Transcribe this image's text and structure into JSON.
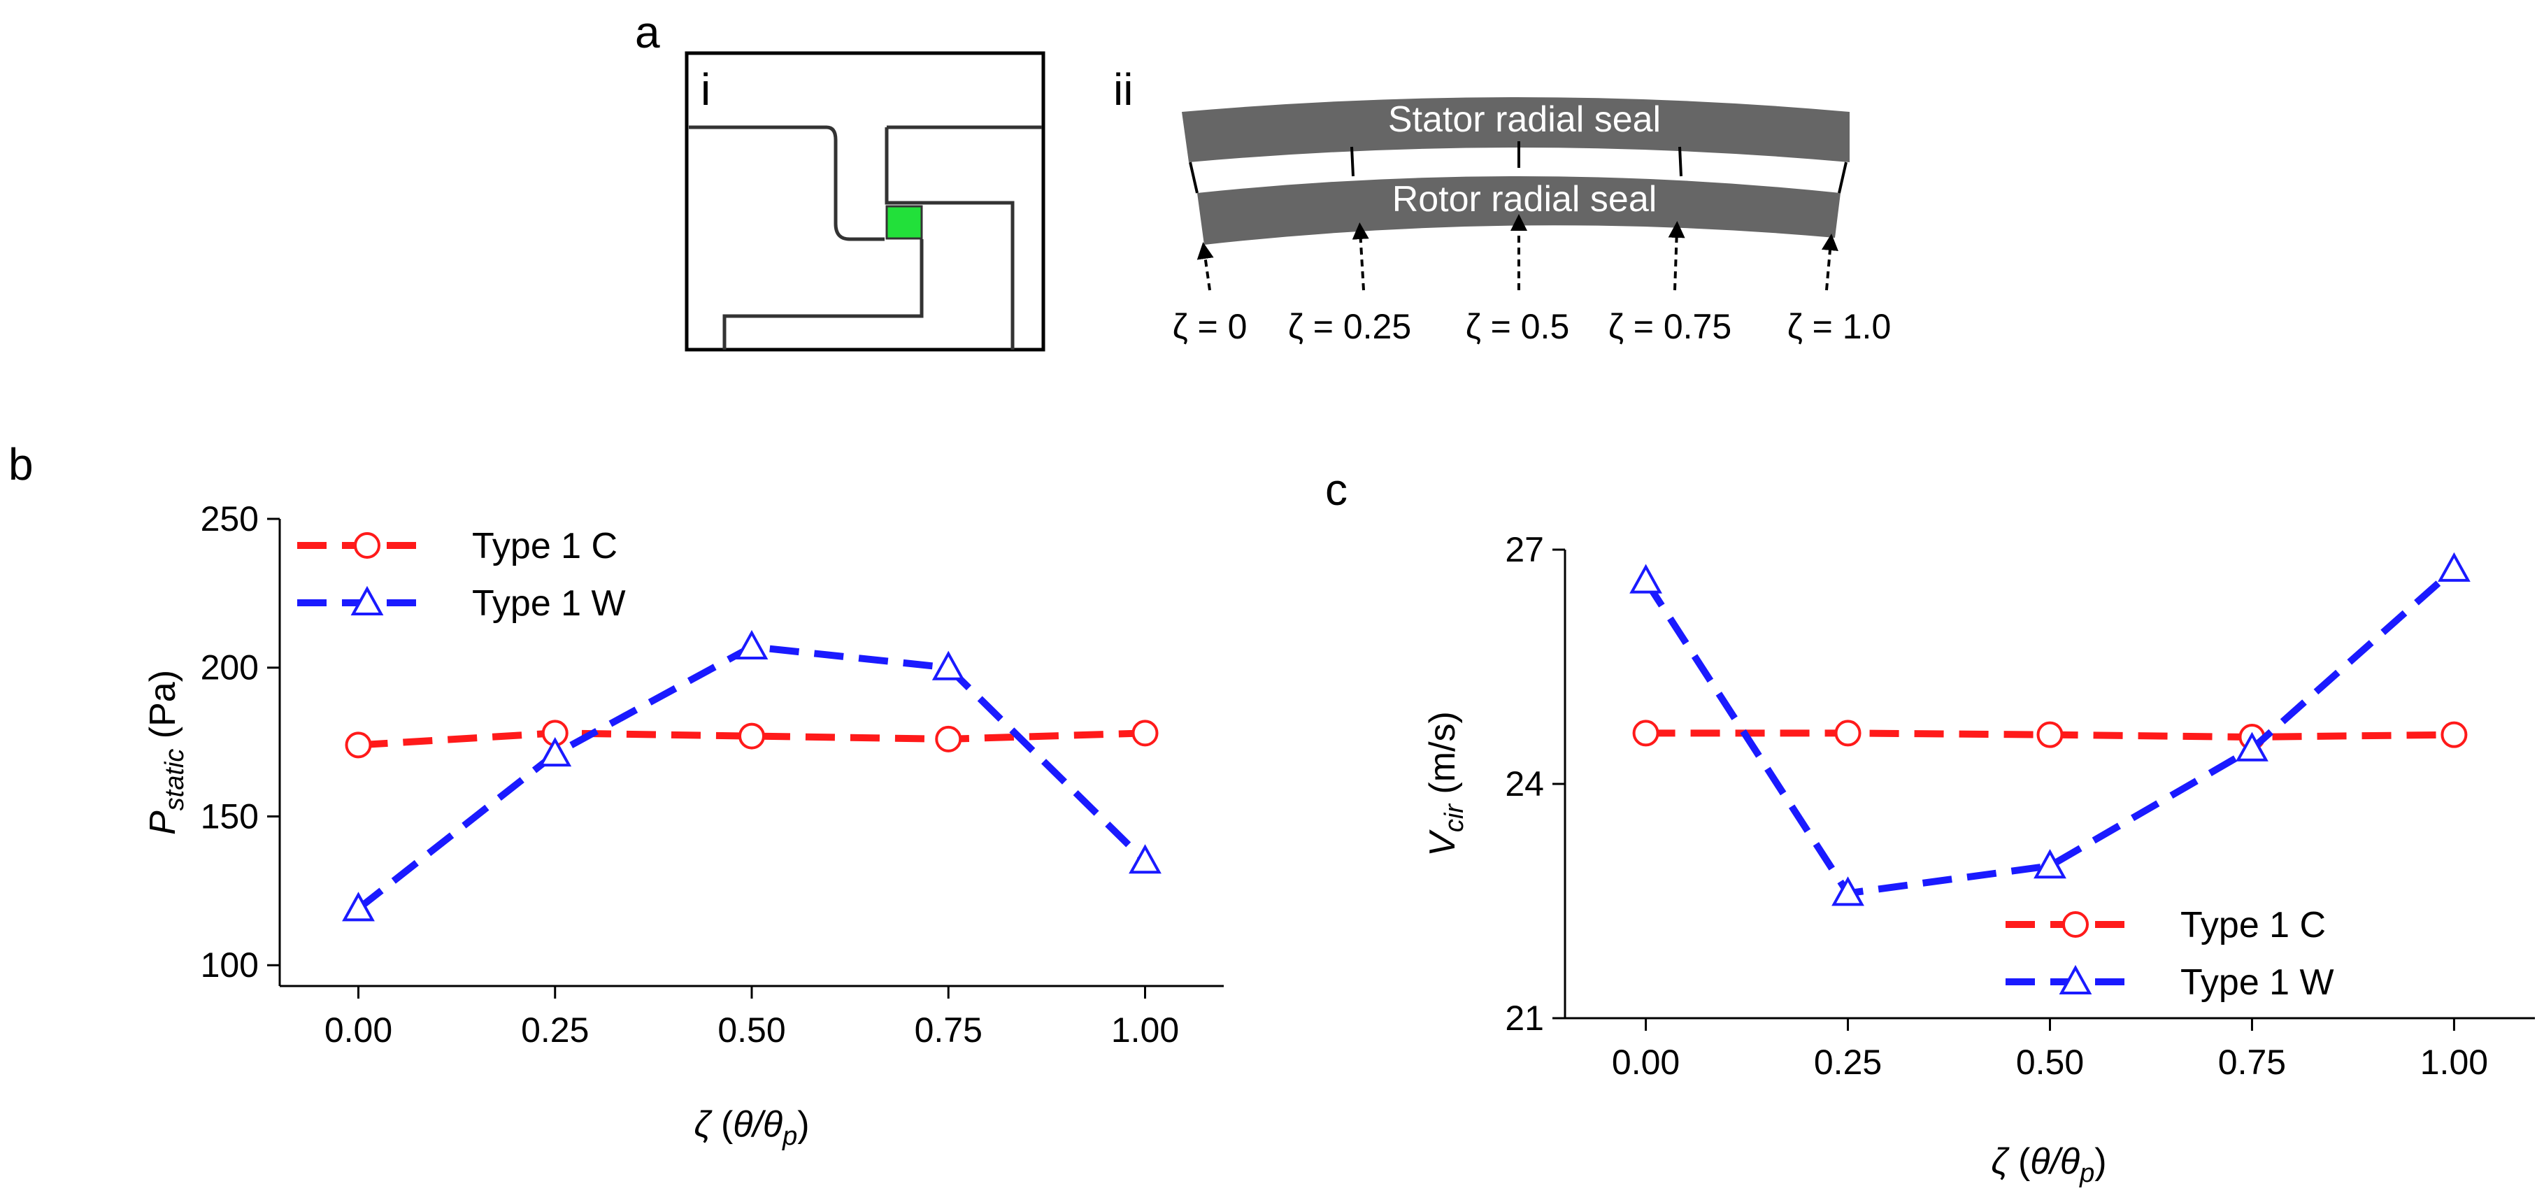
{
  "panel_labels": {
    "a": "a",
    "b": "b",
    "c": "c",
    "i": "i",
    "ii": "ii"
  },
  "schematic": {
    "stator_label": "Stator radial seal",
    "rotor_label": "Rotor radial seal",
    "positions": [
      "ζ = 0",
      "ζ = 0.25",
      "ζ = 0.5",
      "ζ = 0.75",
      "ζ = 1.0"
    ],
    "seal_color": "#666666",
    "highlight_color": "#22e03a"
  },
  "chart_data": [
    {
      "type": "line",
      "panel": "b",
      "x": [
        0.0,
        0.25,
        0.5,
        0.75,
        1.0
      ],
      "x_tick_labels": [
        "0.00",
        "0.25",
        "0.50",
        "0.75",
        "1.00"
      ],
      "y_ticks": [
        100,
        150,
        200,
        250
      ],
      "xlim": [
        -0.1,
        1.1
      ],
      "ylim": [
        93,
        250
      ],
      "xlabel_main": "ζ",
      "xlabel_open": " (",
      "xlabel_theta": "θ",
      "xlabel_slash": "/θ",
      "xlabel_sub": "p",
      "xlabel_close": ")",
      "ylabel_var": "P",
      "ylabel_sub": "static",
      "ylabel_unit": " (Pa)",
      "legend_position": "top-left",
      "series": [
        {
          "name": "Type 1 C",
          "color": "#ff1a1a",
          "marker": "circle",
          "values": [
            174,
            178,
            177,
            176,
            178
          ]
        },
        {
          "name": "Type 1 W",
          "color": "#1a1aff",
          "marker": "triangle",
          "values": [
            119,
            171,
            207,
            200,
            135
          ]
        }
      ]
    },
    {
      "type": "line",
      "panel": "c",
      "x": [
        0.0,
        0.25,
        0.5,
        0.75,
        1.0
      ],
      "x_tick_labels": [
        "0.00",
        "0.25",
        "0.50",
        "0.75",
        "1.00"
      ],
      "y_ticks": [
        21,
        24,
        27
      ],
      "xlim": [
        -0.1,
        1.1
      ],
      "ylim": [
        21,
        27
      ],
      "xlabel_main": "ζ",
      "xlabel_open": " (",
      "xlabel_theta": "θ",
      "xlabel_slash": "/θ",
      "xlabel_sub": "p",
      "xlabel_close": ")",
      "ylabel_var": "V",
      "ylabel_sub": "cir",
      "ylabel_unit": " (m/s)",
      "legend_position": "bottom-right",
      "series": [
        {
          "name": "Type 1 C",
          "color": "#ff1a1a",
          "marker": "circle",
          "values": [
            24.65,
            24.65,
            24.63,
            24.6,
            24.63
          ]
        },
        {
          "name": "Type 1 W",
          "color": "#1a1aff",
          "marker": "triangle",
          "values": [
            26.6,
            22.6,
            22.95,
            24.45,
            26.75
          ]
        }
      ]
    }
  ]
}
